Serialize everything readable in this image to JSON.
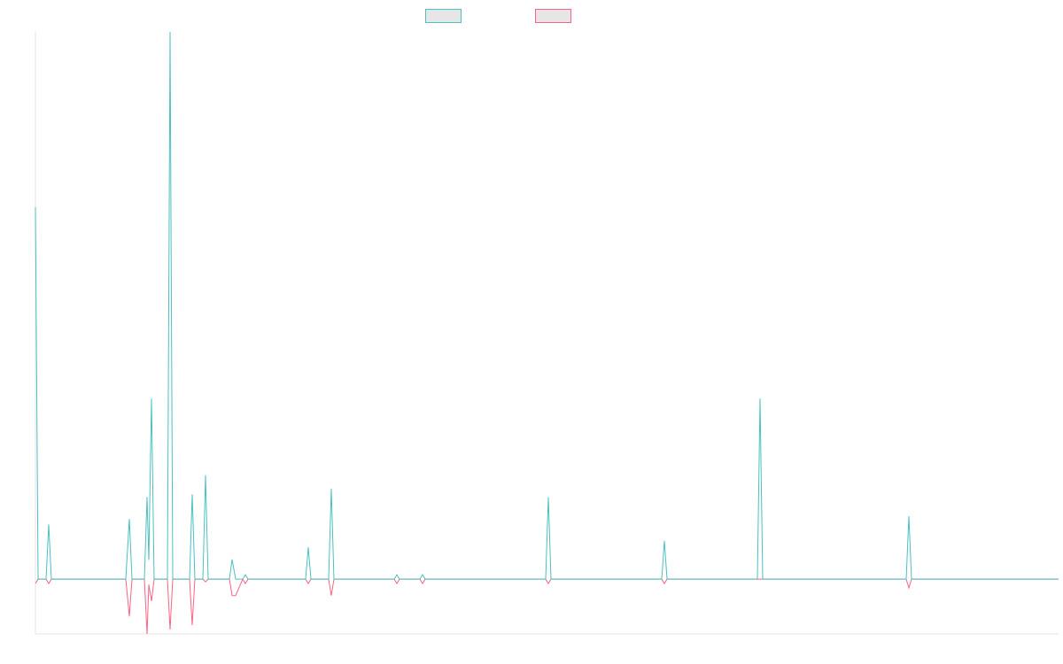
{
  "chart_data": {
    "type": "line",
    "x": [
      0,
      3,
      12,
      15,
      18,
      102,
      106,
      109,
      123,
      126,
      128,
      131,
      134,
      149,
      152,
      155,
      174,
      177,
      180,
      189,
      192,
      195,
      219,
      222,
      226,
      234,
      237,
      240,
      305,
      308,
      311,
      331,
      334,
      337,
      405,
      408,
      411,
      434,
      437,
      440,
      576,
      579,
      582,
      707,
      710,
      713,
      815,
      818,
      821,
      983,
      986,
      989,
      1155
    ],
    "series": [
      {
        "color": "#4bc0c0",
        "values": [
          68,
          0,
          0,
          10,
          0,
          0,
          11,
          0,
          0,
          15,
          3.5,
          33,
          0,
          0,
          100,
          0,
          0,
          15.5,
          0,
          0,
          19,
          0,
          0,
          3.6,
          0,
          0,
          0.8,
          0,
          0,
          5.8,
          0,
          0,
          16.5,
          0,
          0,
          0.8,
          0,
          0,
          0.8,
          0,
          0,
          15,
          0,
          0,
          7,
          0,
          0,
          33,
          0,
          0,
          11.5,
          0,
          0
        ]
      },
      {
        "color": "#ff6384",
        "values": [
          -0.8,
          0,
          0,
          -0.8,
          0,
          0,
          -6.8,
          0,
          0,
          -10,
          -1,
          -4,
          0,
          0,
          -9.2,
          0,
          0,
          -8.4,
          0,
          0,
          -0.5,
          0,
          0,
          -3,
          -3,
          0,
          -0.8,
          0,
          0,
          -0.8,
          0,
          0,
          -3,
          0,
          0,
          -0.8,
          0,
          0,
          -0.8,
          0,
          0,
          -0.8,
          0,
          0,
          -0.8,
          0,
          0,
          0,
          0,
          0,
          -1.6,
          0,
          0
        ]
      }
    ],
    "xlim": [
      0,
      1155
    ],
    "ylim": [
      -10,
      100
    ]
  }
}
